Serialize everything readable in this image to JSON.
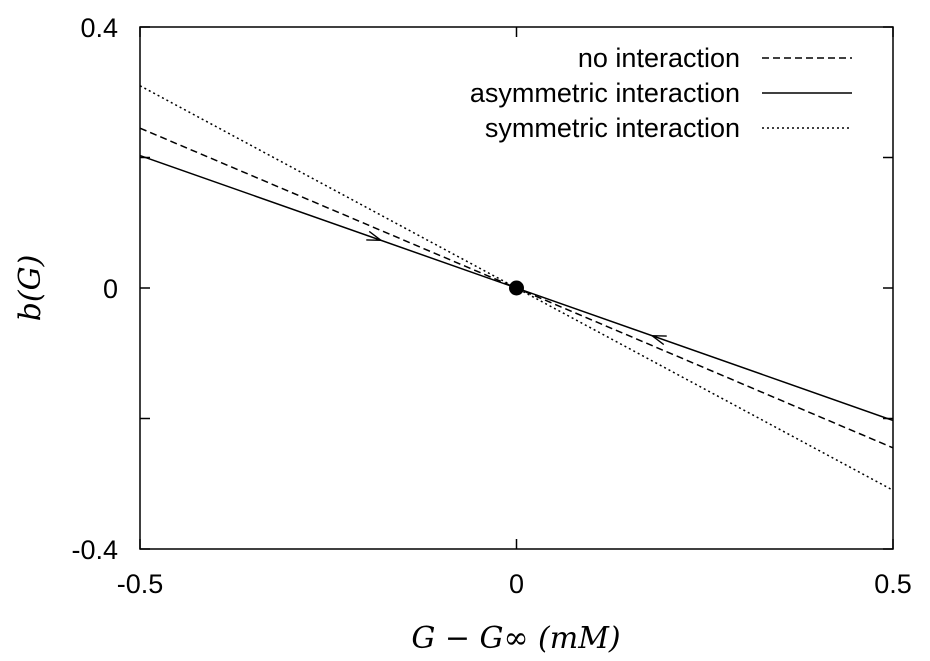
{
  "chart_data": {
    "type": "line",
    "title": "",
    "xlabel": "G − G∞ (mM)",
    "ylabel": "b(G)",
    "xlim": [
      -0.5,
      0.5
    ],
    "ylim": [
      -0.4,
      0.4
    ],
    "x_ticks": [
      {
        "value": -0.5,
        "label": "-0.5"
      },
      {
        "value": 0,
        "label": "0"
      },
      {
        "value": 0.5,
        "label": "0.5"
      }
    ],
    "y_ticks": [
      {
        "value": 0.4,
        "label": "0.4"
      },
      {
        "value": 0,
        "label": "0"
      },
      {
        "value": -0.4,
        "label": "-0.4"
      }
    ],
    "grid": false,
    "legend_position": "top-right",
    "series": [
      {
        "name": "no interaction",
        "style": "dashed",
        "x": [
          -0.5,
          0.5
        ],
        "y": [
          0.245,
          -0.245
        ]
      },
      {
        "name": "asymmetric interaction",
        "style": "solid",
        "x": [
          -0.5,
          0.5
        ],
        "y": [
          0.203,
          -0.203
        ]
      },
      {
        "name": "symmetric interaction",
        "style": "dotted",
        "x": [
          -0.5,
          0.5
        ],
        "y": [
          0.31,
          -0.31
        ]
      }
    ],
    "fixed_point": {
      "x": 0,
      "y": 0
    },
    "direction_arrows": [
      {
        "x": -0.18,
        "series": "asymmetric interaction",
        "pointing": "right"
      },
      {
        "x": 0.18,
        "series": "asymmetric interaction",
        "pointing": "left"
      }
    ],
    "colors": {
      "line": "#000000",
      "background": "#ffffff"
    }
  }
}
